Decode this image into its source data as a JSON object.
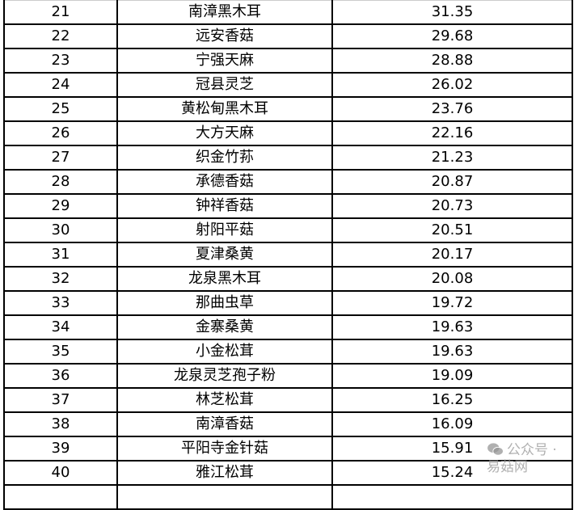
{
  "table": {
    "rows": [
      {
        "rank": "21",
        "name": "南漳黑木耳",
        "value": "31.35"
      },
      {
        "rank": "22",
        "name": "远安香菇",
        "value": "29.68"
      },
      {
        "rank": "23",
        "name": "宁强天麻",
        "value": "28.88"
      },
      {
        "rank": "24",
        "name": "冠县灵芝",
        "value": "26.02"
      },
      {
        "rank": "25",
        "name": "黄松甸黑木耳",
        "value": "23.76"
      },
      {
        "rank": "26",
        "name": "大方天麻",
        "value": "22.16"
      },
      {
        "rank": "27",
        "name": "织金竹荪",
        "value": "21.23"
      },
      {
        "rank": "28",
        "name": "承德香菇",
        "value": "20.87"
      },
      {
        "rank": "29",
        "name": "钟祥香菇",
        "value": "20.73"
      },
      {
        "rank": "30",
        "name": "射阳平菇",
        "value": "20.51"
      },
      {
        "rank": "31",
        "name": "夏津桑黄",
        "value": "20.17"
      },
      {
        "rank": "32",
        "name": "龙泉黑木耳",
        "value": "20.08"
      },
      {
        "rank": "33",
        "name": "那曲虫草",
        "value": "19.72"
      },
      {
        "rank": "34",
        "name": "金寨桑黄",
        "value": "19.63"
      },
      {
        "rank": "35",
        "name": "小金松茸",
        "value": "19.63"
      },
      {
        "rank": "36",
        "name": "龙泉灵芝孢子粉",
        "value": "19.09"
      },
      {
        "rank": "37",
        "name": "林芝松茸",
        "value": "16.25"
      },
      {
        "rank": "38",
        "name": "南漳香菇",
        "value": "16.09"
      },
      {
        "rank": "39",
        "name": "平阳寺金针菇",
        "value": "15.91"
      },
      {
        "rank": "40",
        "name": "雅江松茸",
        "value": "15.24"
      }
    ]
  },
  "watermark": {
    "icon": "wechat-icon",
    "text": "公众号 · 易菇网"
  }
}
